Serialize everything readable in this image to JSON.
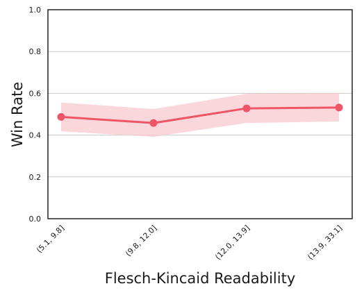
{
  "chart_data": {
    "type": "line",
    "title": "",
    "xlabel": "Flesch-Kincaid Readability",
    "ylabel": "Win Rate",
    "categories": [
      "(5.1, 9.8]",
      "(9.8, 12.0]",
      "(12.0, 13.9]",
      "(13.9, 33.1]"
    ],
    "series": [
      {
        "values": [
          0.487,
          0.458,
          0.528,
          0.532
        ],
        "ci_lower": [
          0.418,
          0.392,
          0.458,
          0.465
        ],
        "ci_upper": [
          0.556,
          0.525,
          0.598,
          0.602
        ]
      }
    ],
    "ylim": [
      0.0,
      1.0
    ],
    "yticks": [
      "0.0",
      "0.2",
      "0.4",
      "0.6",
      "0.8",
      "1.0"
    ],
    "grid": "horizontal",
    "colors": {
      "line": "#ee5566",
      "band": "#f8c6cc",
      "grid": "#c8c8c8",
      "axis": "#222222"
    }
  }
}
